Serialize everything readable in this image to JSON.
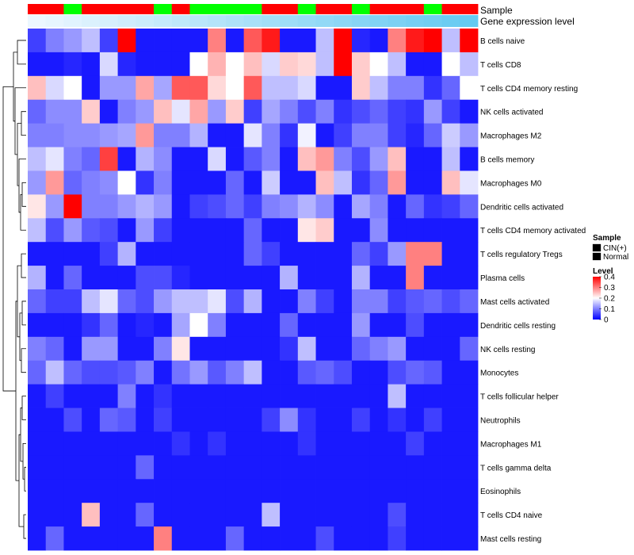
{
  "chart_data": {
    "type": "heatmap",
    "annotation_labels": {
      "sample": "Sample",
      "expression": "Gene expression level"
    },
    "row_labels": [
      "B cells naive",
      "T cells CD8",
      "T cells CD4 memory resting",
      "NK cells activated",
      "Macrophages M2",
      "B cells memory",
      "Macrophages M0",
      "Dendritic cells activated",
      "T cells CD4 memory activated",
      "T cells regulatory  Tregs",
      "Plasma cells",
      "Mast cells activated",
      "Dendritic cells resting",
      "NK cells resting",
      "Monocytes",
      "T cells follicular helper",
      "Neutrophils",
      "Macrophages M1",
      "T cells gamma delta",
      "Eosinophils",
      "T cells CD4 naive",
      "Mast cells resting"
    ],
    "sample_groups": [
      "CIN(+)",
      "CIN(+)",
      "Normal",
      "CIN(+)",
      "CIN(+)",
      "CIN(+)",
      "CIN(+)",
      "Normal",
      "CIN(+)",
      "Normal",
      "Normal",
      "Normal",
      "Normal",
      "CIN(+)",
      "CIN(+)",
      "Normal",
      "CIN(+)",
      "CIN(+)",
      "Normal",
      "CIN(+)",
      "CIN(+)",
      "CIN(+)",
      "Normal",
      "CIN(+)",
      "CIN(+)"
    ],
    "expression_level": [
      0.02,
      0.05,
      0.08,
      0.11,
      0.14,
      0.17,
      0.2,
      0.23,
      0.26,
      0.29,
      0.32,
      0.35,
      0.38,
      0.41,
      0.44,
      0.47,
      0.5,
      0.53,
      0.56,
      0.59,
      0.62,
      0.65,
      0.68,
      0.71,
      0.74
    ],
    "values": [
      [
        0.05,
        0.1,
        0.12,
        0.15,
        0.05,
        0.4,
        0.02,
        0.02,
        0.02,
        0.02,
        0.3,
        0.02,
        0.33,
        0.38,
        0.02,
        0.02,
        0.15,
        0.4,
        0.03,
        0.02,
        0.3,
        0.38,
        0.4,
        0.15,
        0.4
      ],
      [
        0.02,
        0.02,
        0.03,
        0.02,
        0.17,
        0.03,
        0.02,
        0.02,
        0.02,
        0.2,
        0.26,
        0.2,
        0.25,
        0.17,
        0.24,
        0.23,
        0.15,
        0.4,
        0.24,
        0.2,
        0.15,
        0.02,
        0.02,
        0.2,
        0.15
      ],
      [
        0.25,
        0.17,
        0.2,
        0.02,
        0.12,
        0.12,
        0.27,
        0.13,
        0.33,
        0.33,
        0.23,
        0.2,
        0.33,
        0.15,
        0.15,
        0.17,
        0.02,
        0.02,
        0.24,
        0.15,
        0.1,
        0.1,
        0.04,
        0.08,
        0.2
      ],
      [
        0.08,
        0.11,
        0.11,
        0.24,
        0.02,
        0.1,
        0.12,
        0.25,
        0.18,
        0.27,
        0.12,
        0.24,
        0.05,
        0.13,
        0.1,
        0.06,
        0.1,
        0.04,
        0.06,
        0.08,
        0.05,
        0.04,
        0.12,
        0.05,
        0.02
      ],
      [
        0.1,
        0.1,
        0.11,
        0.11,
        0.12,
        0.13,
        0.28,
        0.1,
        0.1,
        0.14,
        0.02,
        0.02,
        0.18,
        0.1,
        0.04,
        0.19,
        0.02,
        0.05,
        0.1,
        0.1,
        0.05,
        0.03,
        0.08,
        0.16,
        0.12
      ],
      [
        0.15,
        0.18,
        0.1,
        0.08,
        0.35,
        0.02,
        0.14,
        0.11,
        0.02,
        0.02,
        0.17,
        0.02,
        0.07,
        0.1,
        0.02,
        0.25,
        0.28,
        0.1,
        0.06,
        0.12,
        0.25,
        0.02,
        0.02,
        0.15,
        0.02
      ],
      [
        0.12,
        0.28,
        0.08,
        0.1,
        0.11,
        0.2,
        0.04,
        0.1,
        0.02,
        0.02,
        0.02,
        0.08,
        0.02,
        0.16,
        0.02,
        0.02,
        0.25,
        0.15,
        0.04,
        0.08,
        0.28,
        0.02,
        0.02,
        0.25,
        0.18
      ],
      [
        0.22,
        0.12,
        0.4,
        0.1,
        0.1,
        0.12,
        0.14,
        0.12,
        0.02,
        0.05,
        0.06,
        0.08,
        0.05,
        0.1,
        0.11,
        0.14,
        0.11,
        0.02,
        0.13,
        0.1,
        0.02,
        0.08,
        0.04,
        0.05,
        0.08
      ],
      [
        0.15,
        0.06,
        0.12,
        0.07,
        0.06,
        0.02,
        0.12,
        0.05,
        0.02,
        0.02,
        0.02,
        0.02,
        0.08,
        0.02,
        0.02,
        0.22,
        0.24,
        0.02,
        0.02,
        0.11,
        0.02,
        0.02,
        0.02,
        0.02,
        0.02
      ],
      [
        0.02,
        0.02,
        0.02,
        0.02,
        0.05,
        0.14,
        0.02,
        0.02,
        0.02,
        0.02,
        0.02,
        0.02,
        0.08,
        0.05,
        0.02,
        0.02,
        0.02,
        0.02,
        0.08,
        0.05,
        0.12,
        0.3,
        0.3,
        0.02,
        0.02
      ],
      [
        0.14,
        0.02,
        0.08,
        0.02,
        0.02,
        0.02,
        0.06,
        0.06,
        0.03,
        0.02,
        0.02,
        0.02,
        0.02,
        0.02,
        0.14,
        0.02,
        0.02,
        0.02,
        0.14,
        0.02,
        0.02,
        0.3,
        0.02,
        0.02,
        0.02
      ],
      [
        0.08,
        0.05,
        0.05,
        0.15,
        0.18,
        0.08,
        0.06,
        0.12,
        0.15,
        0.15,
        0.18,
        0.06,
        0.14,
        0.02,
        0.02,
        0.1,
        0.05,
        0.02,
        0.1,
        0.1,
        0.05,
        0.07,
        0.08,
        0.06,
        0.08
      ],
      [
        0.02,
        0.02,
        0.02,
        0.04,
        0.08,
        0.02,
        0.03,
        0.02,
        0.13,
        0.2,
        0.1,
        0.02,
        0.02,
        0.02,
        0.08,
        0.02,
        0.02,
        0.02,
        0.12,
        0.02,
        0.02,
        0.06,
        0.02,
        0.02,
        0.02
      ],
      [
        0.1,
        0.08,
        0.02,
        0.12,
        0.12,
        0.02,
        0.02,
        0.1,
        0.22,
        0.02,
        0.02,
        0.02,
        0.02,
        0.02,
        0.04,
        0.15,
        0.02,
        0.02,
        0.08,
        0.1,
        0.12,
        0.02,
        0.02,
        0.02,
        0.08
      ],
      [
        0.08,
        0.15,
        0.08,
        0.06,
        0.06,
        0.07,
        0.1,
        0.02,
        0.09,
        0.12,
        0.07,
        0.1,
        0.15,
        0.02,
        0.02,
        0.07,
        0.08,
        0.06,
        0.02,
        0.02,
        0.06,
        0.08,
        0.07,
        0.02,
        0.02
      ],
      [
        0.02,
        0.05,
        0.02,
        0.02,
        0.02,
        0.1,
        0.02,
        0.04,
        0.02,
        0.02,
        0.02,
        0.02,
        0.02,
        0.02,
        0.02,
        0.02,
        0.02,
        0.02,
        0.02,
        0.02,
        0.15,
        0.02,
        0.02,
        0.02,
        0.02
      ],
      [
        0.02,
        0.02,
        0.06,
        0.02,
        0.08,
        0.07,
        0.02,
        0.05,
        0.02,
        0.02,
        0.02,
        0.02,
        0.02,
        0.05,
        0.11,
        0.04,
        0.02,
        0.02,
        0.05,
        0.02,
        0.04,
        0.02,
        0.05,
        0.02,
        0.02
      ],
      [
        0.02,
        0.02,
        0.02,
        0.02,
        0.02,
        0.02,
        0.02,
        0.02,
        0.04,
        0.02,
        0.04,
        0.02,
        0.02,
        0.02,
        0.02,
        0.04,
        0.02,
        0.02,
        0.02,
        0.02,
        0.02,
        0.05,
        0.02,
        0.02,
        0.02
      ],
      [
        0.02,
        0.02,
        0.02,
        0.02,
        0.02,
        0.02,
        0.08,
        0.02,
        0.02,
        0.02,
        0.02,
        0.02,
        0.02,
        0.02,
        0.02,
        0.02,
        0.02,
        0.02,
        0.02,
        0.02,
        0.02,
        0.02,
        0.02,
        0.02,
        0.02
      ],
      [
        0.02,
        0.02,
        0.02,
        0.02,
        0.02,
        0.02,
        0.02,
        0.02,
        0.02,
        0.02,
        0.02,
        0.02,
        0.02,
        0.02,
        0.02,
        0.02,
        0.02,
        0.02,
        0.02,
        0.02,
        0.02,
        0.02,
        0.02,
        0.02,
        0.02
      ],
      [
        0.02,
        0.02,
        0.02,
        0.25,
        0.02,
        0.02,
        0.08,
        0.02,
        0.02,
        0.02,
        0.02,
        0.02,
        0.02,
        0.15,
        0.02,
        0.02,
        0.02,
        0.02,
        0.02,
        0.02,
        0.06,
        0.02,
        0.02,
        0.02,
        0.02
      ],
      [
        0.02,
        0.08,
        0.02,
        0.02,
        0.02,
        0.02,
        0.02,
        0.3,
        0.02,
        0.02,
        0.02,
        0.08,
        0.02,
        0.02,
        0.02,
        0.02,
        0.06,
        0.02,
        0.02,
        0.02,
        0.05,
        0.02,
        0.02,
        0.02,
        0.02
      ]
    ],
    "legend_sample": {
      "title": "Sample",
      "entries": [
        "CIN(+)",
        "Normal"
      ],
      "colors": [
        "#ff0000",
        "#00ff00"
      ]
    },
    "legend_level": {
      "title": "Level",
      "ticks": [
        "0.4",
        "0.3",
        "0.2",
        "0.1",
        "0"
      ],
      "range": [
        0,
        0.4
      ]
    },
    "color_scale": {
      "low": "#0000ff",
      "mid": "#ffffff",
      "high": "#ff0000",
      "midpoint": 0.2
    }
  }
}
